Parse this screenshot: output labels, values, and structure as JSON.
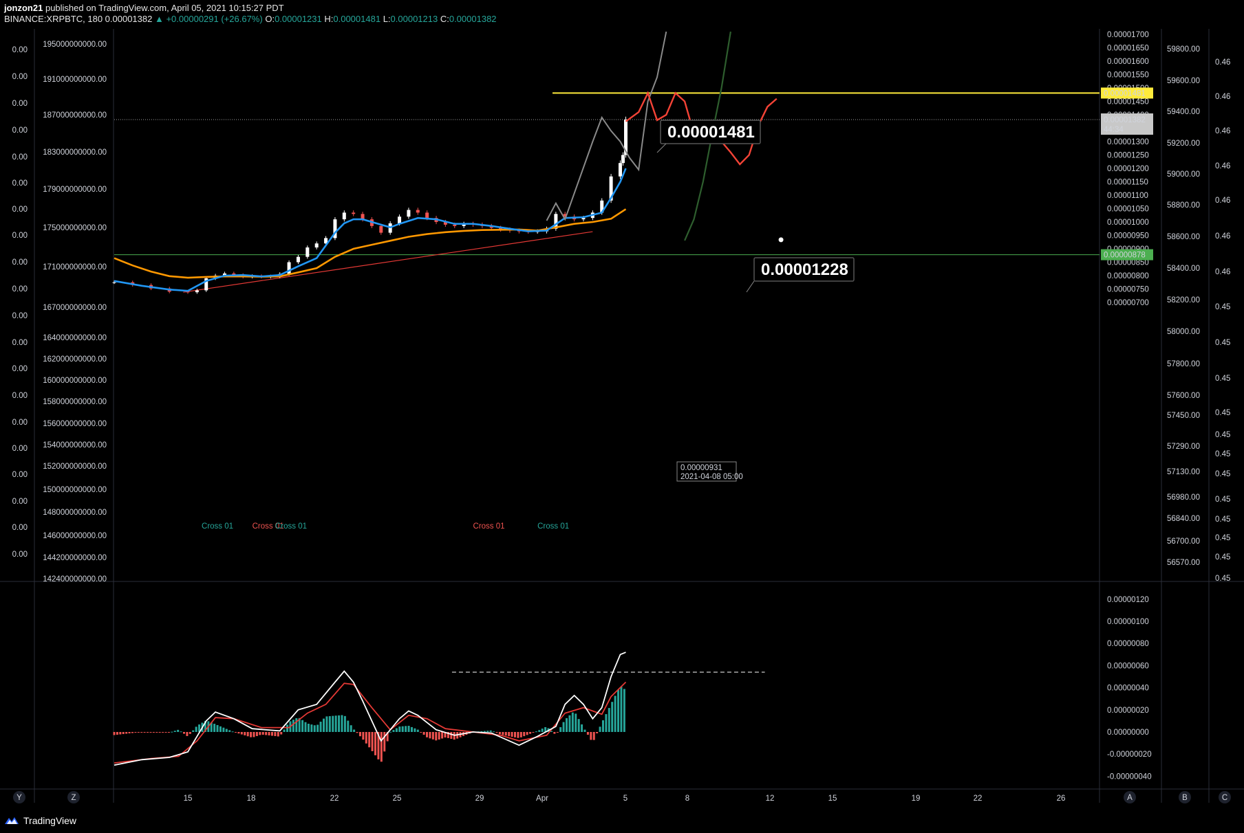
{
  "header": {
    "user": "jonzon21",
    "published": "published on TradingView.com, April 05, 2021 10:15:27 PDT",
    "symbol": "BINANCE:XRPBTC, 180",
    "last": "0.00001382",
    "change": "▲ +0.00000291 (+26.67%)",
    "o_label": "O:",
    "o_value": "0.00001231",
    "h_label": "H:",
    "h_value": "0.00001481",
    "l_label": "L:",
    "l_value": "0.00001213",
    "c_label": "C:",
    "c_value": "0.00001382"
  },
  "brand": "TradingView",
  "colors": {
    "background": "#000000",
    "up": "#ffffff",
    "down": "#ef5350",
    "ema_fast": "#2196f3",
    "ema_slow": "#ff9800",
    "resistance": "#ffeb3b",
    "support": "#4caf50",
    "trendline": "#e53935",
    "projection_red": "#f44336",
    "projection_gray": "#8a8a8a",
    "projection_green": "#2e5e2e",
    "macd_line": "#ffffff",
    "signal_line": "#e53935",
    "hist_up": "#26a69a",
    "hist_down": "#ef5350"
  },
  "chart_data": [
    {
      "type": "line",
      "name": "price",
      "symbol": "BINANCE:XRPBTC",
      "interval": "180",
      "x_ticks": [
        "15",
        "18",
        "22",
        "25",
        "29",
        "Apr",
        "5",
        "8",
        "12",
        "15",
        "19",
        "22",
        "26"
      ],
      "y_ticks": [
        "0.00001700",
        "0.00001650",
        "0.00001600",
        "0.00001550",
        "0.00001500",
        "0.00001450",
        "0.00001400",
        "0.00001350",
        "0.00001300",
        "0.00001250",
        "0.00001200",
        "0.00001150",
        "0.00001100",
        "0.00001050",
        "0.00001000",
        "0.00000950",
        "0.00000900",
        "0.00000850",
        "0.00000800",
        "0.00000750",
        "0.00000700"
      ],
      "ylim": [
        7e-06,
        1.71e-05
      ],
      "close_path": [
        [
          0,
          7.75e-06
        ],
        [
          2,
          7.65e-06
        ],
        [
          4,
          7.52e-06
        ],
        [
          6,
          7.4e-06
        ],
        [
          8,
          7.38e-06
        ],
        [
          9,
          7.45e-06
        ],
        [
          10,
          7.9e-06
        ],
        [
          11,
          8e-06
        ],
        [
          12,
          8.08e-06
        ],
        [
          13,
          8.02e-06
        ],
        [
          14,
          7.96e-06
        ],
        [
          15,
          7.98e-06
        ],
        [
          16,
          7.96e-06
        ],
        [
          17,
          7.97e-06
        ],
        [
          18,
          8.06e-06
        ],
        [
          19,
          8.5e-06
        ],
        [
          20,
          8.7e-06
        ],
        [
          21,
          9.05e-06
        ],
        [
          22,
          9.2e-06
        ],
        [
          23,
          9.4e-06
        ],
        [
          24,
          1.01e-05
        ],
        [
          25,
          1.035e-05
        ],
        [
          26,
          1.03e-05
        ],
        [
          27,
          1.01e-05
        ],
        [
          28,
          9.85e-06
        ],
        [
          29,
          9.6e-06
        ],
        [
          30,
          9.95e-06
        ],
        [
          31,
          1.02e-05
        ],
        [
          32,
          1.045e-05
        ],
        [
          33,
          1.035e-05
        ],
        [
          34,
          1.015e-05
        ],
        [
          35,
          1e-05
        ],
        [
          36,
          9.9e-06
        ],
        [
          37,
          9.85e-06
        ],
        [
          38,
          9.93e-06
        ],
        [
          39,
          9.9e-06
        ],
        [
          40,
          9.85e-06
        ],
        [
          41,
          9.78e-06
        ],
        [
          42,
          9.72e-06
        ],
        [
          43,
          9.68e-06
        ],
        [
          44,
          9.65e-06
        ],
        [
          45,
          9.64e-06
        ],
        [
          46,
          9.65e-06
        ],
        [
          47,
          9.75e-06
        ],
        [
          48,
          1.03e-05
        ],
        [
          49,
          1.02e-05
        ],
        [
          50,
          1.01e-05
        ],
        [
          51,
          1.015e-05
        ],
        [
          52,
          1.035e-05
        ],
        [
          53,
          1.08e-05
        ],
        [
          54,
          1.17e-05
        ],
        [
          55,
          1.22e-05
        ],
        [
          55.3,
          1.25e-05
        ],
        [
          55.6,
          1.382e-05
        ]
      ],
      "ema_fast": [
        [
          0,
          7.8e-06
        ],
        [
          3,
          7.62e-06
        ],
        [
          6,
          7.48e-06
        ],
        [
          8,
          7.43e-06
        ],
        [
          10,
          7.8e-06
        ],
        [
          12,
          8e-06
        ],
        [
          14,
          8.02e-06
        ],
        [
          16,
          7.97e-06
        ],
        [
          18,
          8.02e-06
        ],
        [
          20,
          8.35e-06
        ],
        [
          22,
          8.65e-06
        ],
        [
          24,
          9.6e-06
        ],
        [
          25,
          9.95e-06
        ],
        [
          26,
          1.01e-05
        ],
        [
          27,
          1.01e-05
        ],
        [
          29,
          9.9e-06
        ],
        [
          30,
          9.8e-06
        ],
        [
          31,
          9.93e-06
        ],
        [
          33,
          1.015e-05
        ],
        [
          35,
          1.01e-05
        ],
        [
          37,
          9.93e-06
        ],
        [
          39,
          9.93e-06
        ],
        [
          41,
          9.85e-06
        ],
        [
          43,
          9.75e-06
        ],
        [
          45,
          9.65e-06
        ],
        [
          47,
          9.68e-06
        ],
        [
          49,
          1.015e-05
        ],
        [
          51,
          1.018e-05
        ],
        [
          53,
          1.035e-05
        ],
        [
          54,
          1.09e-05
        ],
        [
          55,
          1.15e-05
        ],
        [
          55.6,
          1.2e-05
        ]
      ],
      "ema_slow": [
        [
          0,
          8.65e-06
        ],
        [
          2,
          8.38e-06
        ],
        [
          4,
          8.15e-06
        ],
        [
          6,
          7.98e-06
        ],
        [
          8,
          7.92e-06
        ],
        [
          10,
          7.95e-06
        ],
        [
          12,
          7.97e-06
        ],
        [
          14,
          7.97e-06
        ],
        [
          16,
          7.96e-06
        ],
        [
          18,
          7.97e-06
        ],
        [
          20,
          8.12e-06
        ],
        [
          22,
          8.28e-06
        ],
        [
          24,
          8.7e-06
        ],
        [
          26,
          9e-06
        ],
        [
          28,
          9.15e-06
        ],
        [
          30,
          9.3e-06
        ],
        [
          32,
          9.45e-06
        ],
        [
          34,
          9.55e-06
        ],
        [
          36,
          9.62e-06
        ],
        [
          38,
          9.67e-06
        ],
        [
          40,
          9.7e-06
        ],
        [
          42,
          9.71e-06
        ],
        [
          44,
          9.72e-06
        ],
        [
          46,
          9.68e-06
        ],
        [
          48,
          9.8e-06
        ],
        [
          50,
          9.93e-06
        ],
        [
          52,
          1e-05
        ],
        [
          54,
          1.012e-05
        ],
        [
          55.6,
          1.048e-05
        ]
      ],
      "levels": [
        {
          "name": "resistance",
          "value": 1.481e-05,
          "label": "0.00001481"
        },
        {
          "name": "last",
          "value": 1.382e-05,
          "label": "0.00001382",
          "countdown": "44:34"
        },
        {
          "name": "support",
          "value": 8.78e-06,
          "label": "0.00000878"
        }
      ],
      "trendline": [
        [
          7.5,
          7.38e-06
        ],
        [
          52,
          9.64e-06
        ]
      ],
      "projection_red": [
        [
          55.6,
          1.375e-05
        ],
        [
          57,
          1.41e-05
        ],
        [
          58,
          1.481e-05
        ],
        [
          59,
          1.38e-05
        ],
        [
          60,
          1.4e-05
        ],
        [
          61,
          1.481e-05
        ],
        [
          62,
          1.45e-05
        ],
        [
          63,
          1.33e-05
        ],
        [
          64,
          1.35e-05
        ],
        [
          65,
          1.375e-05
        ],
        [
          66,
          1.3e-05
        ],
        [
          67,
          1.26e-05
        ],
        [
          68,
          1.215e-05
        ],
        [
          69,
          1.25e-05
        ],
        [
          70,
          1.36e-05
        ],
        [
          71,
          1.43e-05
        ],
        [
          72,
          1.46e-05
        ]
      ],
      "projection_gray": [
        [
          47,
          1.005e-05
        ],
        [
          48,
          1.07e-05
        ],
        [
          49,
          1.01e-05
        ],
        [
          52,
          1.3e-05
        ],
        [
          53,
          1.39e-05
        ],
        [
          54,
          1.34e-05
        ],
        [
          55,
          1.3e-05
        ],
        [
          56,
          1.24e-05
        ],
        [
          57,
          1.195e-05
        ],
        [
          58,
          1.45e-05
        ],
        [
          59,
          1.54e-05
        ],
        [
          60,
          1.71e-05
        ]
      ],
      "projection_green": [
        [
          62,
          9.31e-06
        ],
        [
          63,
          1.01e-05
        ],
        [
          64,
          1.15e-05
        ],
        [
          65,
          1.33e-05
        ],
        [
          66,
          1.5e-05
        ],
        [
          67,
          1.71e-05
        ]
      ],
      "annotations": [
        {
          "text": "0.00001481",
          "x": 58,
          "y": 1.481e-05
        },
        {
          "text": "0.00001228",
          "x": 69,
          "y": 1.228e-05
        },
        {
          "text": "0.00000931",
          "date": "2021-04-08 05:00",
          "x": 62,
          "y": 9.31e-06
        }
      ],
      "cross_labels": [
        {
          "text": "Cross 01",
          "color": "#26a69a",
          "x": 9.5
        },
        {
          "text": "Cross 01",
          "color": "#ef5350",
          "x": 15
        },
        {
          "text": "Cross 01",
          "color": "#26a69a",
          "x": 17.5
        },
        {
          "text": "Cross 01",
          "color": "#ef5350",
          "x": 39
        },
        {
          "text": "Cross 01",
          "color": "#26a69a",
          "x": 46
        }
      ],
      "left_axis_1": [
        "0.00",
        "0.00",
        "0.00",
        "0.00",
        "0.00",
        "0.00",
        "0.00",
        "0.00",
        "0.00",
        "0.00",
        "0.00",
        "0.00",
        "0.00",
        "0.00",
        "0.00",
        "0.00",
        "0.00",
        "0.00",
        "0.00",
        "0.00"
      ],
      "left_axis_2": [
        "195000000000.00",
        "191000000000.00",
        "187000000000.00",
        "183000000000.00",
        "179000000000.00",
        "175000000000.00",
        "171000000000.00",
        "167000000000.00",
        "164000000000.00",
        "162000000000.00",
        "160000000000.00",
        "158000000000.00",
        "156000000000.00",
        "154000000000.00",
        "152000000000.00",
        "150000000000.00",
        "148000000000.00",
        "146000000000.00",
        "144200000000.00",
        "142400000000.00"
      ],
      "right_axis_2": [
        "59800.00",
        "59600.00",
        "59400.00",
        "59200.00",
        "59000.00",
        "58800.00",
        "58600.00",
        "58400.00",
        "58200.00",
        "58000.00",
        "57800.00",
        "57600.00",
        "57450.00",
        "57290.00",
        "57130.00",
        "56980.00",
        "56840.00",
        "56700.00",
        "56570.00"
      ],
      "right_axis_3": [
        "0.46",
        "0.46",
        "0.46",
        "0.46",
        "0.46",
        "0.46",
        "0.46",
        "0.45",
        "0.45",
        "0.45",
        "0.45",
        "0.45",
        "0.45",
        "0.45",
        "0.45",
        "0.45",
        "0.45",
        "0.45",
        "0.45",
        "0.45"
      ]
    },
    {
      "type": "line",
      "name": "macd",
      "y_ticks": [
        "0.00000120",
        "0.00000100",
        "0.00000080",
        "0.00000060",
        "0.00000040",
        "0.00000020",
        "0.00000000",
        "-0.00000020",
        "-0.00000040"
      ],
      "ylim": [
        -4.5e-07,
        1.3e-06
      ],
      "macd": [
        [
          0,
          -3e-07
        ],
        [
          3,
          -2.5e-07
        ],
        [
          6,
          -2.3e-07
        ],
        [
          8,
          -1.8e-07
        ],
        [
          10,
          1e-07
        ],
        [
          11,
          1.8e-07
        ],
        [
          13,
          1.2e-07
        ],
        [
          15,
          3e-08
        ],
        [
          18,
          1e-08
        ],
        [
          20,
          2e-07
        ],
        [
          22,
          2.5e-07
        ],
        [
          24,
          4.5e-07
        ],
        [
          25,
          5.5e-07
        ],
        [
          26,
          4.5e-07
        ],
        [
          27,
          2.8e-07
        ],
        [
          28,
          1e-07
        ],
        [
          29,
          -8e-08
        ],
        [
          30,
          2e-08
        ],
        [
          31,
          1.2e-07
        ],
        [
          32,
          1.9e-07
        ],
        [
          33,
          1.5e-07
        ],
        [
          35,
          2e-08
        ],
        [
          37,
          -3e-08
        ],
        [
          39,
          0.0
        ],
        [
          41,
          -1e-08
        ],
        [
          44,
          -1.2e-07
        ],
        [
          46,
          -4e-08
        ],
        [
          48,
          5e-08
        ],
        [
          49,
          2.5e-07
        ],
        [
          50,
          3.3e-07
        ],
        [
          51,
          2.5e-07
        ],
        [
          52,
          1.2e-07
        ],
        [
          53,
          2.2e-07
        ],
        [
          54,
          5e-07
        ],
        [
          55,
          7e-07
        ],
        [
          55.6,
          7.2e-07
        ]
      ],
      "signal": [
        [
          0,
          -2.8e-07
        ],
        [
          4,
          -2.4e-07
        ],
        [
          7,
          -2.2e-07
        ],
        [
          9,
          -8e-08
        ],
        [
          11,
          1.3e-07
        ],
        [
          13,
          1.2e-07
        ],
        [
          16,
          4e-08
        ],
        [
          19,
          4e-08
        ],
        [
          21,
          1.7e-07
        ],
        [
          23,
          2.5e-07
        ],
        [
          25,
          4.4e-07
        ],
        [
          26,
          4.3e-07
        ],
        [
          28,
          2.2e-07
        ],
        [
          30,
          2e-08
        ],
        [
          32,
          1.5e-07
        ],
        [
          34,
          1.2e-07
        ],
        [
          36,
          3e-08
        ],
        [
          39,
          0.0
        ],
        [
          42,
          -3e-08
        ],
        [
          44,
          -8e-08
        ],
        [
          47,
          -3e-08
        ],
        [
          49,
          1.7e-07
        ],
        [
          51,
          2.2e-07
        ],
        [
          53,
          1.6e-07
        ],
        [
          54,
          3.2e-07
        ],
        [
          55.6,
          4.5e-07
        ]
      ],
      "dashed_high": {
        "value": 5.4e-07,
        "x_start": 24,
        "x_end": 58
      }
    }
  ],
  "bottom_buttons": [
    "Y",
    "Z",
    "A",
    "B",
    "C"
  ]
}
